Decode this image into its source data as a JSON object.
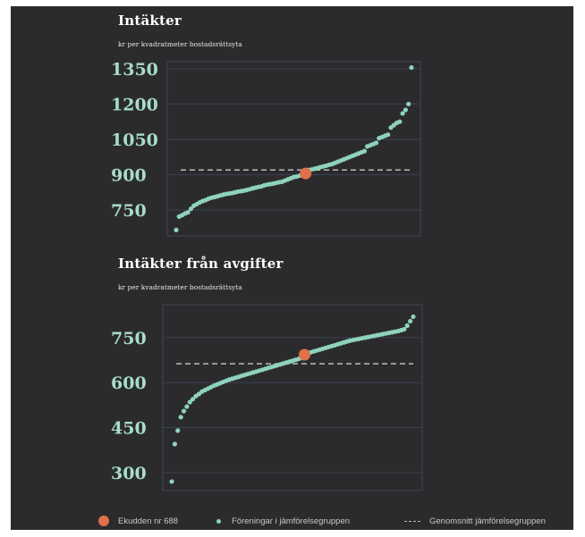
{
  "colors": {
    "panel_bg": "#2b2b2d",
    "highlight": "#e0704a",
    "group_points": "#8fd3bd",
    "average_line": "#bbbbbb",
    "tick_labels": "#a8dccb"
  },
  "legend": {
    "highlight_label": "Ekudden nr 688",
    "group_label": "Föreningar i jämförelsegruppen",
    "average_label": "Genomsnitt jämförelsegruppen"
  },
  "chart_data": [
    {
      "type": "scatter",
      "title": "Intäkter",
      "subtitle": "kr per kvadratmeter bostadsrättsyta",
      "ylim": [
        640,
        1380
      ],
      "yticks": [
        "1350",
        "1200",
        "1050",
        "900",
        "750"
      ],
      "grid": true,
      "average": 920,
      "highlight": {
        "x": 44,
        "y": 905
      },
      "values": [
        665,
        722,
        728,
        735,
        740,
        755,
        768,
        775,
        782,
        788,
        792,
        798,
        802,
        805,
        808,
        812,
        815,
        818,
        820,
        822,
        825,
        828,
        830,
        832,
        835,
        838,
        842,
        845,
        848,
        850,
        855,
        858,
        860,
        862,
        865,
        868,
        870,
        875,
        880,
        885,
        890,
        892,
        896,
        900,
        915,
        920,
        922,
        925,
        928,
        932,
        935,
        938,
        942,
        945,
        950,
        955,
        960,
        965,
        970,
        975,
        980,
        985,
        990,
        995,
        1000,
        1020,
        1025,
        1030,
        1035,
        1055,
        1060,
        1065,
        1070,
        1100,
        1110,
        1120,
        1125,
        1160,
        1175,
        1200,
        1355
      ]
    },
    {
      "type": "scatter",
      "title": "Intäkter från avgifter",
      "subtitle": "kr per kvadratmeter bostadsrättsyta",
      "ylim": [
        240,
        860
      ],
      "yticks": [
        "750",
        "600",
        "450",
        "300"
      ],
      "grid": true,
      "average": 663,
      "highlight": {
        "x": 44,
        "y": 693
      },
      "values": [
        270,
        395,
        440,
        485,
        505,
        520,
        535,
        545,
        555,
        562,
        570,
        575,
        580,
        585,
        590,
        594,
        598,
        602,
        606,
        610,
        613,
        616,
        619,
        622,
        625,
        628,
        631,
        634,
        637,
        640,
        643,
        646,
        649,
        652,
        655,
        658,
        661,
        664,
        667,
        670,
        673,
        676,
        679,
        682,
        695,
        698,
        701,
        704,
        707,
        710,
        713,
        716,
        719,
        722,
        725,
        728,
        731,
        734,
        737,
        740,
        742,
        744,
        746,
        748,
        750,
        752,
        754,
        756,
        758,
        760,
        762,
        764,
        766,
        768,
        770,
        772,
        775,
        778,
        790,
        805,
        820
      ]
    }
  ]
}
